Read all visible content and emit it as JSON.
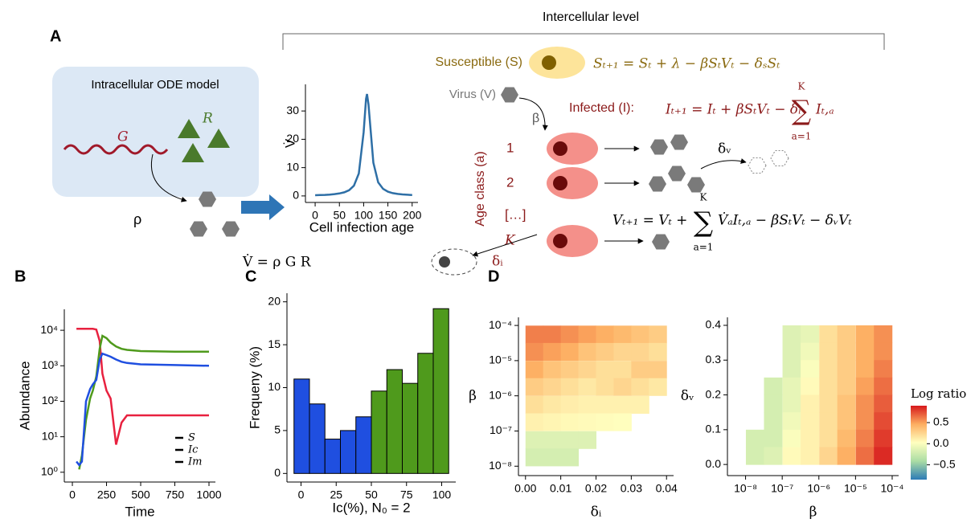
{
  "diagram": {
    "panel": "A",
    "level": "Intercellular level",
    "intracellular": "Intracellular ODE model",
    "gene": "G",
    "rna": "R",
    "rho": "ρ",
    "vdot_eq": "V̇ = ρ G R",
    "susceptible": "Susceptible (S)",
    "s_eq": "Sₜ₊₁ = Sₜ + λ − βSₜVₜ − δₛSₜ",
    "virus": "Virus (V)",
    "beta": "β",
    "infected": "Infected (I):",
    "i_eq": "Iₜ₊₁ = Iₜ + βSₜVₜ − δᵢ",
    "i_sum": {
      "symbol": "∑",
      "upper": "K",
      "lower": "a=1",
      "term": "Iₜ,ₐ"
    },
    "age_class": "Age class (a)",
    "ages": [
      "1",
      "2",
      "[…]",
      "K"
    ],
    "delta_v": "δᵥ",
    "v_eq": "Vₜ₊₁ = Vₜ +",
    "v_sum": {
      "symbol": "∑",
      "upper": "K",
      "lower": "a=1",
      "term": "V̇ₐIₜ,ₐ − βSₜVₜ − δᵥVₜ"
    },
    "delta_i": "δᵢ"
  },
  "chart_data": [
    {
      "type": "line",
      "xlabel": "Cell infection age",
      "ylabel": "V̇",
      "x": [
        0,
        10,
        20,
        30,
        40,
        50,
        60,
        70,
        80,
        90,
        100,
        105,
        107,
        110,
        120,
        130,
        140,
        150,
        160,
        170,
        180,
        190,
        200
      ],
      "series": [
        {
          "color": "#2e6fa6",
          "values": [
            0.25,
            0.31,
            0.38,
            0.49,
            0.64,
            0.88,
            1.27,
            2.0,
            3.6,
            7.9,
            22.5,
            34.3,
            36,
            32.4,
            11.7,
            4.8,
            2.5,
            1.5,
            1.0,
            0.72,
            0.54,
            0.42,
            0.33
          ]
        }
      ],
      "xlim": [
        -20,
        212
      ],
      "ylim": [
        -2.3,
        39.4
      ],
      "xticks": [
        0,
        50,
        100,
        150,
        200
      ],
      "yticks": [
        0,
        10,
        20,
        30
      ]
    },
    {
      "type": "line",
      "label": "B",
      "xlabel": "Time",
      "ylabel": "Abundance",
      "logy": true,
      "legend": "lower right",
      "x": [
        30,
        50,
        70,
        100,
        130,
        150,
        175,
        200,
        220,
        250,
        280,
        320,
        360,
        400,
        500,
        750,
        1000
      ],
      "series": [
        {
          "name": "S",
          "color": "#e8213f",
          "values": [
            11000,
            11000,
            11000,
            11000,
            11000,
            11000,
            10500,
            5000,
            600,
            200,
            120,
            6,
            25,
            40,
            40,
            40,
            40
          ]
        },
        {
          "name": "Ic",
          "color": "#4f9a1c",
          "values": [
            null,
            1.2,
            3,
            30,
            120,
            200,
            500,
            3000,
            7000,
            6000,
            4500,
            3500,
            3000,
            2800,
            2600,
            2500,
            2500
          ]
        },
        {
          "name": "Im",
          "color": "#1f4fe0",
          "values": [
            2,
            1.6,
            2,
            100,
            220,
            300,
            400,
            1500,
            2200,
            2000,
            1800,
            1500,
            1300,
            1200,
            1100,
            1050,
            1000
          ]
        }
      ],
      "xlim": [
        -59,
        1047
      ],
      "ylim": [
        0.53,
        39000
      ],
      "xticks": [
        0,
        250,
        500,
        750,
        1000
      ],
      "yticks": [
        {
          "value": 1,
          "label": "10⁰"
        },
        {
          "value": 10,
          "label": "10¹"
        },
        {
          "value": 100,
          "label": "10²"
        },
        {
          "value": 1000,
          "label": "10³"
        },
        {
          "value": 10000,
          "label": "10⁴"
        }
      ]
    },
    {
      "type": "histogram",
      "label": "C",
      "xlabel": "Ic(%),   N₀ = 2",
      "ylabel": "Frequeny (%)",
      "bins": [
        -5,
        6,
        17,
        28,
        39,
        50,
        61,
        72,
        83,
        94,
        105
      ],
      "values": [
        11,
        8.1,
        4,
        5,
        6.6,
        9.6,
        12.1,
        10.5,
        14,
        19.2
      ],
      "colors": [
        "#1f4fe0",
        "#1f4fe0",
        "#1f4fe0",
        "#1f4fe0",
        "#1f4fe0",
        "#4f9a1c",
        "#4f9a1c",
        "#4f9a1c",
        "#4f9a1c",
        "#4f9a1c"
      ],
      "xlim": [
        -10,
        110
      ],
      "ylim": [
        -1,
        21
      ],
      "xticks": [
        0,
        25,
        50,
        75,
        100
      ],
      "yticks": [
        0,
        5,
        10,
        15,
        20
      ]
    },
    {
      "type": "heatmap",
      "label": "D",
      "xlabel": "δᵢ",
      "ylabel": "β",
      "logy": true,
      "x": [
        0.0025,
        0.0075,
        0.0125,
        0.0175,
        0.0225,
        0.0275,
        0.0325,
        0.0375
      ],
      "y": [
        5.6e-05,
        1.8e-05,
        5.6e-06,
        1.8e-06,
        5.6e-07,
        1.8e-07,
        5.6e-08,
        1.8e-08
      ],
      "z": [
        [
          0.6,
          0.6,
          0.55,
          0.5,
          0.45,
          0.4,
          0.35,
          0.3
        ],
        [
          0.55,
          0.5,
          0.45,
          0.35,
          0.3,
          0.25,
          0.25,
          0.2
        ],
        [
          0.45,
          0.35,
          0.3,
          0.25,
          0.2,
          0.2,
          0.3,
          0.3
        ],
        [
          0.3,
          0.25,
          0.2,
          0.15,
          0.2,
          0.25,
          0.2,
          0.15
        ],
        [
          0.2,
          0.15,
          0.12,
          0.1,
          0.1,
          0.1,
          0.1,
          null
        ],
        [
          0.1,
          0.08,
          0.06,
          0.05,
          0.04,
          0.03,
          null,
          null
        ],
        [
          -0.15,
          -0.15,
          -0.15,
          -0.15,
          null,
          null,
          null,
          null
        ],
        [
          -0.2,
          -0.2,
          -0.2,
          null,
          null,
          null,
          null,
          null
        ]
      ],
      "xlim": [
        -0.002,
        0.042
      ],
      "ylim": [
        5.4e-09,
        0.00017
      ],
      "xticks": [
        {
          "value": 0,
          "label": "0.00"
        },
        {
          "value": 0.01,
          "label": "0.01"
        },
        {
          "value": 0.02,
          "label": "0.02"
        },
        {
          "value": 0.03,
          "label": "0.03"
        },
        {
          "value": 0.04,
          "label": "0.04"
        }
      ],
      "yticks": [
        {
          "value": 1e-08,
          "label": "10⁻⁸"
        },
        {
          "value": 1e-07,
          "label": "10⁻⁷"
        },
        {
          "value": 1e-06,
          "label": "10⁻⁶"
        },
        {
          "value": 1e-05,
          "label": "10⁻⁵"
        },
        {
          "value": 0.0001,
          "label": "10⁻⁴"
        }
      ]
    },
    {
      "type": "heatmap",
      "xlabel": "β",
      "ylabel": "δᵥ",
      "logx": true,
      "x": [
        1.8e-08,
        5.6e-08,
        1.8e-07,
        5.6e-07,
        1.8e-06,
        5.6e-06,
        1.8e-05,
        5.6e-05
      ],
      "y": [
        0.375,
        0.325,
        0.275,
        0.225,
        0.175,
        0.125,
        0.075,
        0.025
      ],
      "z": [
        [
          null,
          null,
          -0.15,
          -0.1,
          0.2,
          0.3,
          0.45,
          0.55
        ],
        [
          null,
          null,
          -0.15,
          -0.05,
          0.2,
          0.3,
          0.45,
          0.55
        ],
        [
          null,
          null,
          -0.15,
          0,
          0.2,
          0.3,
          0.45,
          0.6
        ],
        [
          null,
          -0.2,
          -0.1,
          0.05,
          0.2,
          0.3,
          0.5,
          0.65
        ],
        [
          null,
          -0.2,
          -0.1,
          0.1,
          0.2,
          0.35,
          0.55,
          0.7
        ],
        [
          null,
          -0.2,
          -0.05,
          0.1,
          0.2,
          0.35,
          0.55,
          0.75
        ],
        [
          -0.2,
          -0.2,
          0,
          0.1,
          0.2,
          0.4,
          0.6,
          0.8
        ],
        [
          -0.2,
          -0.15,
          0.05,
          0.1,
          0.25,
          0.45,
          0.65,
          0.85
        ]
      ],
      "xlim": [
        3.2e-09,
        0.00015
      ],
      "ylim": [
        -0.032,
        0.423
      ],
      "xticks": [
        {
          "value": 1e-08,
          "label": "10⁻⁸"
        },
        {
          "value": 1e-07,
          "label": "10⁻⁷"
        },
        {
          "value": 1e-06,
          "label": "10⁻⁶"
        },
        {
          "value": 1e-05,
          "label": "10⁻⁵"
        },
        {
          "value": 0.0001,
          "label": "10⁻⁴"
        }
      ],
      "yticks": [
        {
          "value": 0,
          "label": "0.0"
        },
        0.1,
        0.2,
        0.3,
        0.4
      ],
      "colorbar": {
        "label": "Log ratio",
        "lim": [
          -0.85,
          0.9
        ],
        "ticks": [
          0.5,
          {
            "value": 0,
            "label": "0.0"
          },
          {
            "value": -0.5,
            "label": "−0.5"
          }
        ],
        "colors": [
          "#2c7bb6",
          "#abdda4",
          "#ffffbf",
          "#fdae61",
          "#d7191c"
        ]
      }
    }
  ]
}
